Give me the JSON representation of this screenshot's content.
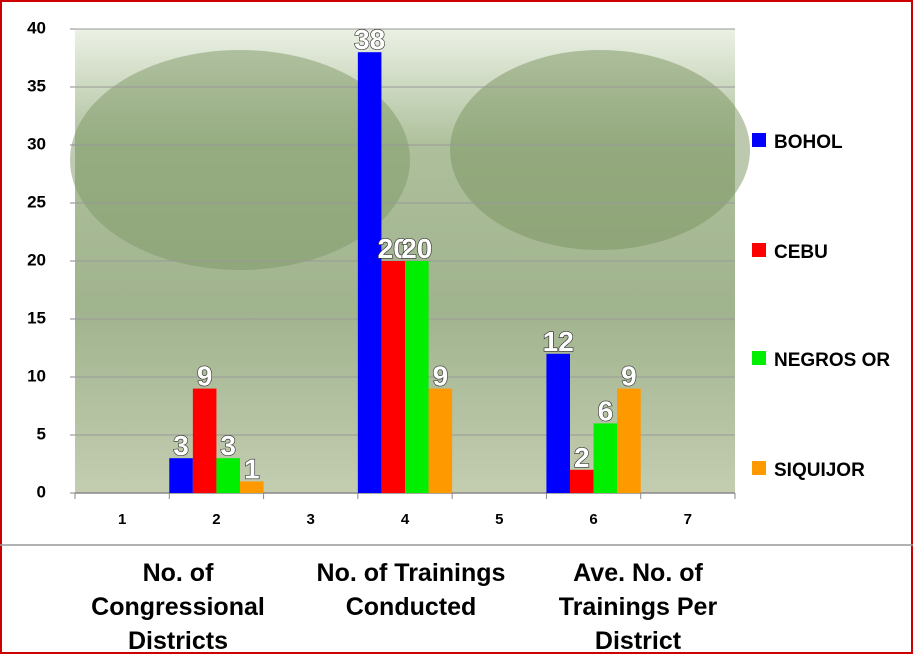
{
  "chart_data": {
    "type": "bar",
    "categories": [
      1,
      2,
      3,
      4,
      5,
      6,
      7
    ],
    "series": [
      {
        "name": "BOHOL",
        "color": "#0000ff",
        "values": [
          null,
          3,
          null,
          38,
          null,
          12,
          null
        ]
      },
      {
        "name": "CEBU",
        "color": "#ff0000",
        "values": [
          null,
          9,
          null,
          20,
          null,
          2,
          null
        ]
      },
      {
        "name": "NEGROS OR",
        "color": "#00ee00",
        "values": [
          null,
          3,
          null,
          20,
          null,
          6,
          null
        ]
      },
      {
        "name": "SIQUIJOR",
        "color": "#ff9900",
        "values": [
          null,
          1,
          null,
          9,
          null,
          9,
          null
        ]
      }
    ],
    "ylim": [
      0,
      40
    ],
    "yticks": [
      0,
      5,
      10,
      15,
      20,
      25,
      30,
      35,
      40
    ],
    "grid": true,
    "group_labels": [
      "No. of Congressional Districts",
      "No. of Trainings Conducted",
      "Ave. No. of Trainings Per District"
    ]
  }
}
